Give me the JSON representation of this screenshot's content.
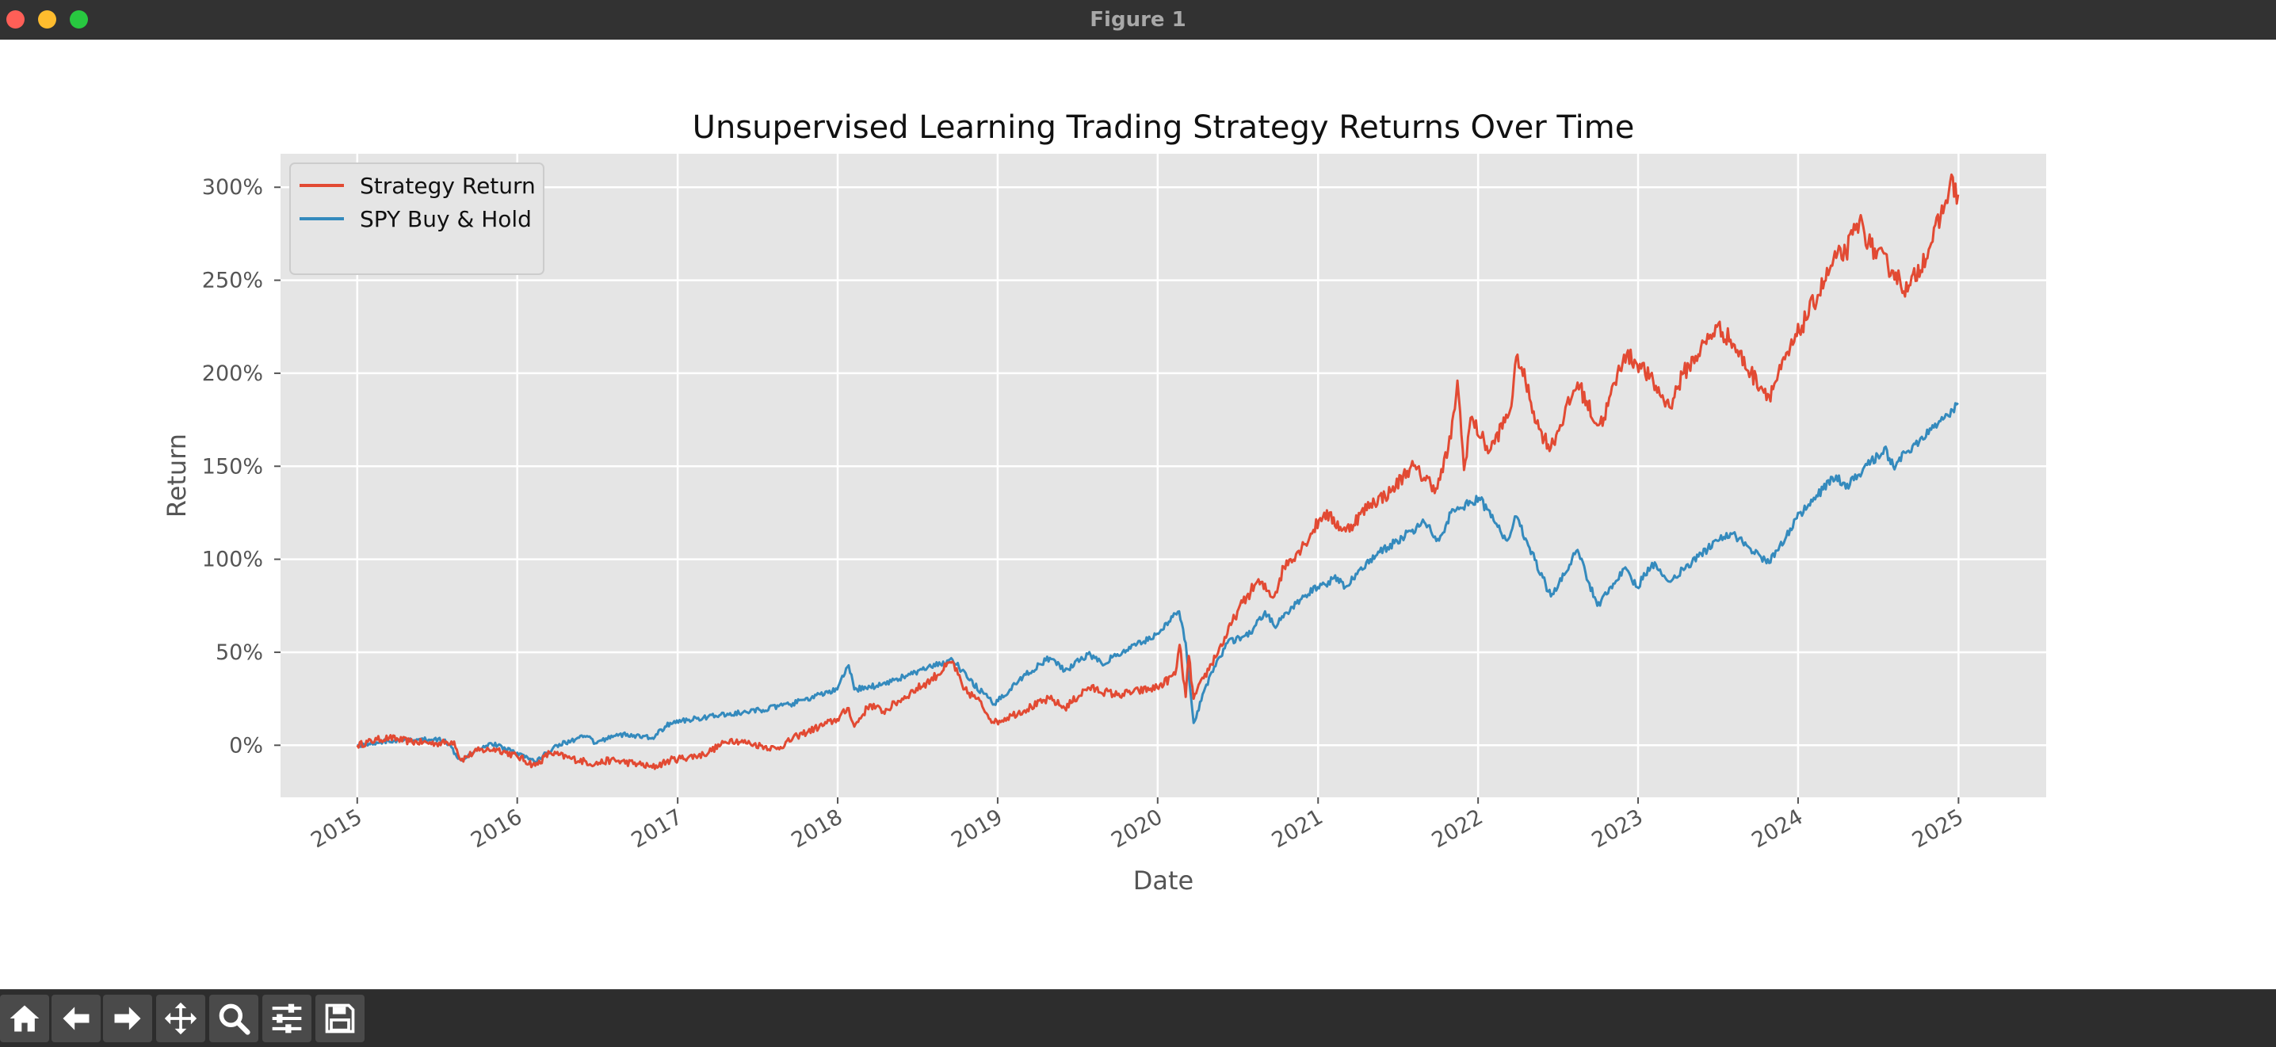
{
  "window": {
    "title": "Figure 1"
  },
  "toolbar": {
    "buttons": [
      "home-icon",
      "back-arrow-icon",
      "forward-arrow-icon",
      "pan-move-icon",
      "zoom-magnifier-icon",
      "configure-subplots-icon",
      "save-floppy-icon"
    ]
  },
  "colors": {
    "strategy": "#e24a33",
    "spy": "#348abd",
    "axes_bg": "#e5e5e5",
    "grid": "#ffffff"
  },
  "chart_data": {
    "type": "line",
    "title": "Unsupervised Learning Trading Strategy Returns Over Time",
    "xlabel": "Date",
    "ylabel": "Return",
    "xlim": [
      "2014-07-10",
      "2025-07-20"
    ],
    "ylim": [
      -28,
      318
    ],
    "x_ticks": [
      "2015",
      "2016",
      "2017",
      "2018",
      "2019",
      "2020",
      "2021",
      "2022",
      "2023",
      "2024",
      "2025"
    ],
    "y_ticks": [
      "0%",
      "50%",
      "100%",
      "150%",
      "200%",
      "250%",
      "300%"
    ],
    "y_tick_values": [
      0,
      50,
      100,
      150,
      200,
      250,
      300
    ],
    "grid": true,
    "legend": "upper-left",
    "series": [
      {
        "name": "Strategy Return",
        "color": "#e24a33",
        "points": [
          [
            "2015-01-01",
            0
          ],
          [
            "2015-02-15",
            3
          ],
          [
            "2015-03-15",
            4
          ],
          [
            "2015-05-01",
            2
          ],
          [
            "2015-07-01",
            1
          ],
          [
            "2015-08-10",
            2
          ],
          [
            "2015-08-25",
            -8
          ],
          [
            "2015-10-01",
            -3
          ],
          [
            "2015-11-15",
            -2
          ],
          [
            "2016-01-01",
            -6
          ],
          [
            "2016-02-11",
            -11
          ],
          [
            "2016-03-15",
            -4
          ],
          [
            "2016-05-01",
            -7
          ],
          [
            "2016-06-27",
            -10
          ],
          [
            "2016-08-01",
            -8
          ],
          [
            "2016-10-01",
            -10
          ],
          [
            "2016-11-04",
            -12
          ],
          [
            "2016-12-15",
            -8
          ],
          [
            "2017-03-01",
            -5
          ],
          [
            "2017-05-01",
            3
          ],
          [
            "2017-06-15",
            1
          ],
          [
            "2017-08-15",
            -2
          ],
          [
            "2017-10-01",
            5
          ],
          [
            "2017-12-31",
            14
          ],
          [
            "2018-01-26",
            20
          ],
          [
            "2018-02-08",
            10
          ],
          [
            "2018-03-15",
            22
          ],
          [
            "2018-04-15",
            18
          ],
          [
            "2018-06-15",
            28
          ],
          [
            "2018-08-01",
            35
          ],
          [
            "2018-09-20",
            45
          ],
          [
            "2018-10-15",
            30
          ],
          [
            "2018-11-15",
            25
          ],
          [
            "2018-12-24",
            12
          ],
          [
            "2019-02-01",
            16
          ],
          [
            "2019-04-30",
            25
          ],
          [
            "2019-06-03",
            20
          ],
          [
            "2019-07-26",
            31
          ],
          [
            "2019-10-01",
            27
          ],
          [
            "2019-12-31",
            31
          ],
          [
            "2020-02-10",
            38
          ],
          [
            "2020-02-20",
            54
          ],
          [
            "2020-03-05",
            26
          ],
          [
            "2020-03-12",
            48
          ],
          [
            "2020-03-23",
            25
          ],
          [
            "2020-04-15",
            36
          ],
          [
            "2020-06-08",
            60
          ],
          [
            "2020-07-01",
            72
          ],
          [
            "2020-08-15",
            88
          ],
          [
            "2020-09-23",
            80
          ],
          [
            "2020-10-15",
            96
          ],
          [
            "2020-11-30",
            108
          ],
          [
            "2021-01-15",
            125
          ],
          [
            "2021-03-05",
            115
          ],
          [
            "2021-05-01",
            130
          ],
          [
            "2021-06-15",
            136
          ],
          [
            "2021-08-01",
            150
          ],
          [
            "2021-09-30",
            138
          ],
          [
            "2021-10-31",
            165
          ],
          [
            "2021-11-15",
            196
          ],
          [
            "2021-11-30",
            148
          ],
          [
            "2021-12-15",
            176
          ],
          [
            "2022-01-27",
            158
          ],
          [
            "2022-03-15",
            180
          ],
          [
            "2022-04-01",
            210
          ],
          [
            "2022-05-20",
            170
          ],
          [
            "2022-06-16",
            160
          ],
          [
            "2022-08-16",
            195
          ],
          [
            "2022-09-30",
            172
          ],
          [
            "2022-10-15",
            176
          ],
          [
            "2022-11-30",
            210
          ],
          [
            "2023-01-05",
            205
          ],
          [
            "2023-03-13",
            182
          ],
          [
            "2023-04-15",
            200
          ],
          [
            "2023-06-30",
            225
          ],
          [
            "2023-07-31",
            218
          ],
          [
            "2023-09-15",
            200
          ],
          [
            "2023-10-27",
            188
          ],
          [
            "2023-12-29",
            220
          ],
          [
            "2024-03-28",
            262
          ],
          [
            "2024-04-19",
            265
          ],
          [
            "2024-05-20",
            282
          ],
          [
            "2024-06-15",
            268
          ],
          [
            "2024-08-05",
            255
          ],
          [
            "2024-09-07",
            244
          ],
          [
            "2024-10-31",
            270
          ],
          [
            "2024-11-30",
            290
          ],
          [
            "2024-12-13",
            303
          ],
          [
            "2024-12-31",
            296
          ]
        ]
      },
      {
        "name": "SPY Buy & Hold",
        "color": "#348abd",
        "points": [
          [
            "2015-01-01",
            0
          ],
          [
            "2015-03-01",
            2
          ],
          [
            "2015-05-20",
            3
          ],
          [
            "2015-07-20",
            3
          ],
          [
            "2015-08-25",
            -8
          ],
          [
            "2015-10-01",
            -2
          ],
          [
            "2015-11-03",
            1
          ],
          [
            "2016-01-01",
            -4
          ],
          [
            "2016-02-11",
            -9
          ],
          [
            "2016-03-31",
            0
          ],
          [
            "2016-06-08",
            5
          ],
          [
            "2016-06-27",
            1
          ],
          [
            "2016-08-15",
            6
          ],
          [
            "2016-11-04",
            4
          ],
          [
            "2016-12-15",
            12
          ],
          [
            "2017-03-01",
            15
          ],
          [
            "2017-06-15",
            18
          ],
          [
            "2017-09-15",
            22
          ],
          [
            "2017-12-31",
            30
          ],
          [
            "2018-01-26",
            43
          ],
          [
            "2018-02-08",
            30
          ],
          [
            "2018-03-31",
            32
          ],
          [
            "2018-06-15",
            38
          ],
          [
            "2018-09-20",
            46
          ],
          [
            "2018-10-29",
            35
          ],
          [
            "2018-12-24",
            22
          ],
          [
            "2019-02-28",
            37
          ],
          [
            "2019-04-30",
            47
          ],
          [
            "2019-06-03",
            40
          ],
          [
            "2019-07-26",
            49
          ],
          [
            "2019-08-26",
            44
          ],
          [
            "2019-10-31",
            52
          ],
          [
            "2019-12-31",
            60
          ],
          [
            "2020-02-19",
            72
          ],
          [
            "2020-03-05",
            55
          ],
          [
            "2020-03-23",
            12
          ],
          [
            "2020-04-30",
            38
          ],
          [
            "2020-06-08",
            55
          ],
          [
            "2020-07-31",
            60
          ],
          [
            "2020-09-02",
            72
          ],
          [
            "2020-09-23",
            64
          ],
          [
            "2020-11-30",
            80
          ],
          [
            "2020-12-31",
            85
          ],
          [
            "2021-02-15",
            90
          ],
          [
            "2021-03-04",
            85
          ],
          [
            "2021-04-30",
            100
          ],
          [
            "2021-06-30",
            110
          ],
          [
            "2021-08-31",
            120
          ],
          [
            "2021-10-04",
            110
          ],
          [
            "2021-10-31",
            125
          ],
          [
            "2022-01-03",
            133
          ],
          [
            "2022-03-08",
            110
          ],
          [
            "2022-03-29",
            123
          ],
          [
            "2022-06-16",
            80
          ],
          [
            "2022-08-16",
            105
          ],
          [
            "2022-09-30",
            75
          ],
          [
            "2022-11-30",
            95
          ],
          [
            "2022-12-30",
            85
          ],
          [
            "2023-02-02",
            98
          ],
          [
            "2023-03-13",
            88
          ],
          [
            "2023-06-30",
            110
          ],
          [
            "2023-07-31",
            114
          ],
          [
            "2023-10-27",
            98
          ],
          [
            "2023-12-29",
            122
          ],
          [
            "2024-03-28",
            145
          ],
          [
            "2024-04-19",
            138
          ],
          [
            "2024-07-16",
            160
          ],
          [
            "2024-08-05",
            150
          ],
          [
            "2024-09-06",
            158
          ],
          [
            "2024-11-30",
            176
          ],
          [
            "2024-12-31",
            184
          ]
        ]
      }
    ]
  }
}
